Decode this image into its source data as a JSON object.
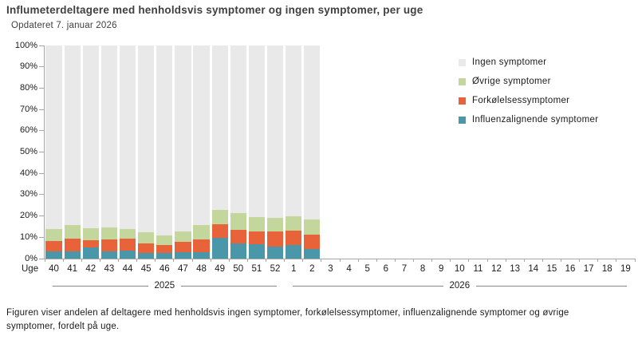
{
  "header": {
    "title": "Influmeterdeltagere med henholdsvis symptomer og ingen symptomer, per uge",
    "updated": "Opdateret 7. januar 2026"
  },
  "footer": {
    "text": "Figuren viser andelen af deltagere med henholdsvis ingen symptomer, forkølelsessymptomer, influenzalignende symptomer og øvrige symptomer, fordelt på uge."
  },
  "legend": {
    "items": [
      {
        "key": "ingen",
        "label": "Ingen symptomer",
        "color": "#e9e9e9"
      },
      {
        "key": "ovrige",
        "label": "Øvrige symptomer",
        "color": "#c3d69b"
      },
      {
        "key": "forkolelse",
        "label": "Forkølelsessymptomer",
        "color": "#e8623a"
      },
      {
        "key": "influenza",
        "label": "Influenzalignende symptomer",
        "color": "#4997a8"
      }
    ]
  },
  "chart_data": {
    "type": "bar",
    "stacked": true,
    "unit": "%",
    "x_axis_label": "Uge",
    "ylim": [
      0,
      100
    ],
    "y_ticks": [
      "0%",
      "10%",
      "20%",
      "30%",
      "40%",
      "50%",
      "60%",
      "70%",
      "80%",
      "90%",
      "100%"
    ],
    "categories": [
      "40",
      "41",
      "42",
      "43",
      "44",
      "45",
      "46",
      "47",
      "48",
      "49",
      "50",
      "51",
      "52",
      "1",
      "2",
      "3",
      "4",
      "5",
      "6",
      "7",
      "8",
      "9",
      "10",
      "11",
      "12",
      "13",
      "14",
      "15",
      "16",
      "17",
      "18",
      "19"
    ],
    "year_groups": [
      {
        "label": "2025",
        "from": "40",
        "to": "52"
      },
      {
        "label": "2026",
        "from": "1",
        "to": "19"
      }
    ],
    "series": [
      {
        "name": "Influenzalignende symptomer",
        "color": "#4997a8",
        "values": [
          3.5,
          3.5,
          5.2,
          3.5,
          3.7,
          2.5,
          2.5,
          3.1,
          2.9,
          9.6,
          7.3,
          6.6,
          5.7,
          6.5,
          4.6,
          null,
          null,
          null,
          null,
          null,
          null,
          null,
          null,
          null,
          null,
          null,
          null,
          null,
          null,
          null,
          null,
          null
        ]
      },
      {
        "name": "Forkølelsessymptomer",
        "color": "#e8623a",
        "values": [
          4.6,
          5.8,
          3.5,
          5.4,
          5.6,
          4.7,
          3.7,
          4.6,
          6.2,
          6.5,
          6.2,
          6.2,
          7.1,
          6.5,
          6.8,
          null,
          null,
          null,
          null,
          null,
          null,
          null,
          null,
          null,
          null,
          null,
          null,
          null,
          null,
          null,
          null,
          null
        ]
      },
      {
        "name": "Øvrige symptomer",
        "color": "#c3d69b",
        "values": [
          5.8,
          6.5,
          5.6,
          5.9,
          4.7,
          5.2,
          4.6,
          5.1,
          6.7,
          6.9,
          8.0,
          6.6,
          6.4,
          6.9,
          6.9,
          null,
          null,
          null,
          null,
          null,
          null,
          null,
          null,
          null,
          null,
          null,
          null,
          null,
          null,
          null,
          null,
          null
        ]
      },
      {
        "name": "Ingen symptomer",
        "color": "#e9e9e9",
        "values": [
          86.1,
          84.2,
          85.7,
          85.2,
          86.0,
          87.6,
          89.2,
          87.2,
          84.2,
          77.0,
          78.5,
          80.6,
          80.8,
          80.1,
          81.7,
          null,
          null,
          null,
          null,
          null,
          null,
          null,
          null,
          null,
          null,
          null,
          null,
          null,
          null,
          null,
          null,
          null
        ]
      }
    ]
  }
}
